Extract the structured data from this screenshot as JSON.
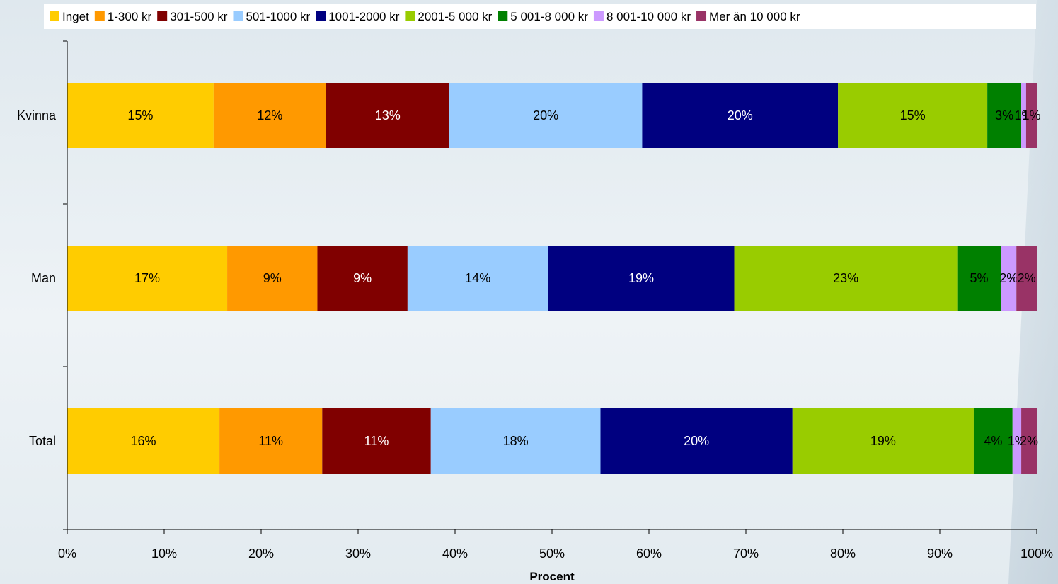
{
  "chart_data": {
    "type": "bar",
    "orientation": "horizontal",
    "stacked": true,
    "title": "",
    "xlabel": "Procent",
    "ylabel": "",
    "xlim": [
      0,
      100
    ],
    "x_ticks": [
      "0%",
      "10%",
      "20%",
      "30%",
      "40%",
      "50%",
      "60%",
      "70%",
      "80%",
      "90%",
      "100%"
    ],
    "legend_position": "top",
    "categories": [
      "Kvinna",
      "Man",
      "Total"
    ],
    "series": [
      {
        "name": "Inget",
        "color": "#FFCC00",
        "values": [
          15.1,
          16.5,
          15.7
        ],
        "labels": [
          "15%",
          "17%",
          "16%"
        ]
      },
      {
        "name": "1-300 kr",
        "color": "#FF9900",
        "values": [
          11.6,
          9.3,
          10.6
        ],
        "labels": [
          "12%",
          "9%",
          "11%"
        ]
      },
      {
        "name": "301-500 kr",
        "color": "#800000",
        "values": [
          12.7,
          9.3,
          11.2
        ],
        "labels": [
          "13%",
          "9%",
          "11%"
        ]
      },
      {
        "name": "501-1000 kr",
        "color": "#99CCFF",
        "values": [
          19.9,
          14.5,
          17.5
        ],
        "labels": [
          "20%",
          "14%",
          "18%"
        ]
      },
      {
        "name": "1001-2000 kr",
        "color": "#000080",
        "values": [
          20.2,
          19.2,
          19.8
        ],
        "labels": [
          "20%",
          "19%",
          "20%"
        ]
      },
      {
        "name": "2001-5 000 kr",
        "color": "#99CC00",
        "values": [
          15.4,
          23.0,
          18.7
        ],
        "labels": [
          "15%",
          "23%",
          "19%"
        ]
      },
      {
        "name": "5 001-8 000 kr",
        "color": "#008000",
        "values": [
          3.5,
          4.5,
          4.0
        ],
        "labels": [
          "3%",
          "5%",
          "4%"
        ]
      },
      {
        "name": "8 001-10 000 kr",
        "color": "#CC99FF",
        "values": [
          0.5,
          1.6,
          0.9
        ],
        "labels": [
          "1%",
          "2%",
          "1%"
        ]
      },
      {
        "name": "Mer än 10 000 kr",
        "color": "#993366",
        "values": [
          1.1,
          2.1,
          1.6
        ],
        "labels": [
          "1%",
          "2%",
          "2%"
        ]
      }
    ]
  }
}
